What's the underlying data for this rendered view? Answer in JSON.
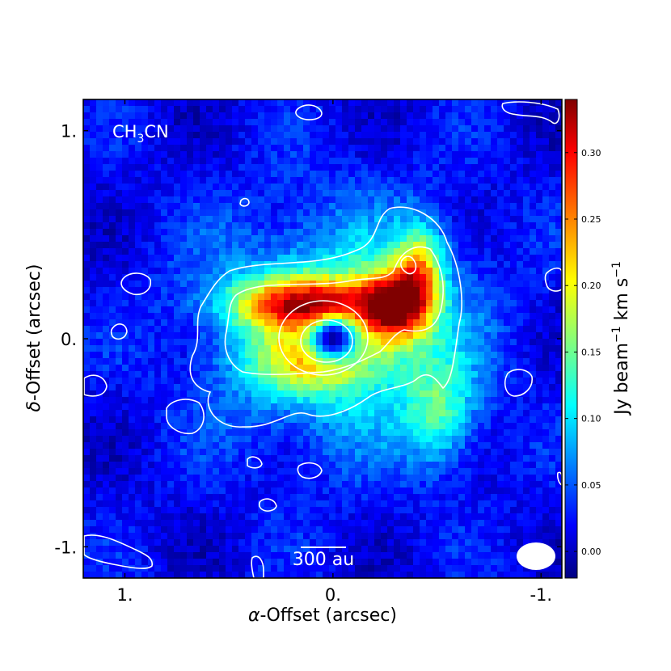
{
  "chart_data": {
    "type": "heatmap",
    "molecule_label": {
      "main": "CH",
      "sub": "3",
      "tail": "CN"
    },
    "xlabel": {
      "prefix": "α",
      "rest": "-Offset (arcsec)"
    },
    "ylabel": {
      "prefix": "δ",
      "rest": "-Offset (arcsec)"
    },
    "xlim": [
      1.2,
      -1.1
    ],
    "ylim": [
      -1.15,
      1.15
    ],
    "x_ticks": [
      {
        "value": 1.0,
        "label": "1."
      },
      {
        "value": 0.0,
        "label": "0."
      },
      {
        "value": -1.0,
        "label": "-1."
      }
    ],
    "y_ticks": [
      {
        "value": 1.0,
        "label": "1."
      },
      {
        "value": 0.0,
        "label": "0."
      },
      {
        "value": -1.0,
        "label": "-1."
      }
    ],
    "colorbar": {
      "label": {
        "pre": "Jy beam",
        "sup1": "−1",
        "mid": " km s",
        "sup2": "−1"
      },
      "range": [
        -0.02,
        0.34
      ],
      "ticks": [
        {
          "value": 0.0,
          "label": "0.00"
        },
        {
          "value": 0.05,
          "label": "0.05"
        },
        {
          "value": 0.1,
          "label": "0.10"
        },
        {
          "value": 0.15,
          "label": "0.15"
        },
        {
          "value": 0.2,
          "label": "0.20"
        },
        {
          "value": 0.25,
          "label": "0.25"
        },
        {
          "value": 0.3,
          "label": "0.30"
        }
      ],
      "colormap": "jet"
    },
    "scale_bar": {
      "label": "300 au",
      "length_arcsec": 0.22
    },
    "beam": {
      "major_arcsec": 0.18,
      "minor_arcsec": 0.13,
      "center": [
        -1.0,
        -1.05
      ]
    },
    "features": {
      "peak_arc_value": 0.33,
      "central_hole_value": -0.01,
      "northwest_knob_value": 0.24,
      "diffuse_envelope_value": 0.12
    },
    "contour_color": "#ffffff"
  }
}
